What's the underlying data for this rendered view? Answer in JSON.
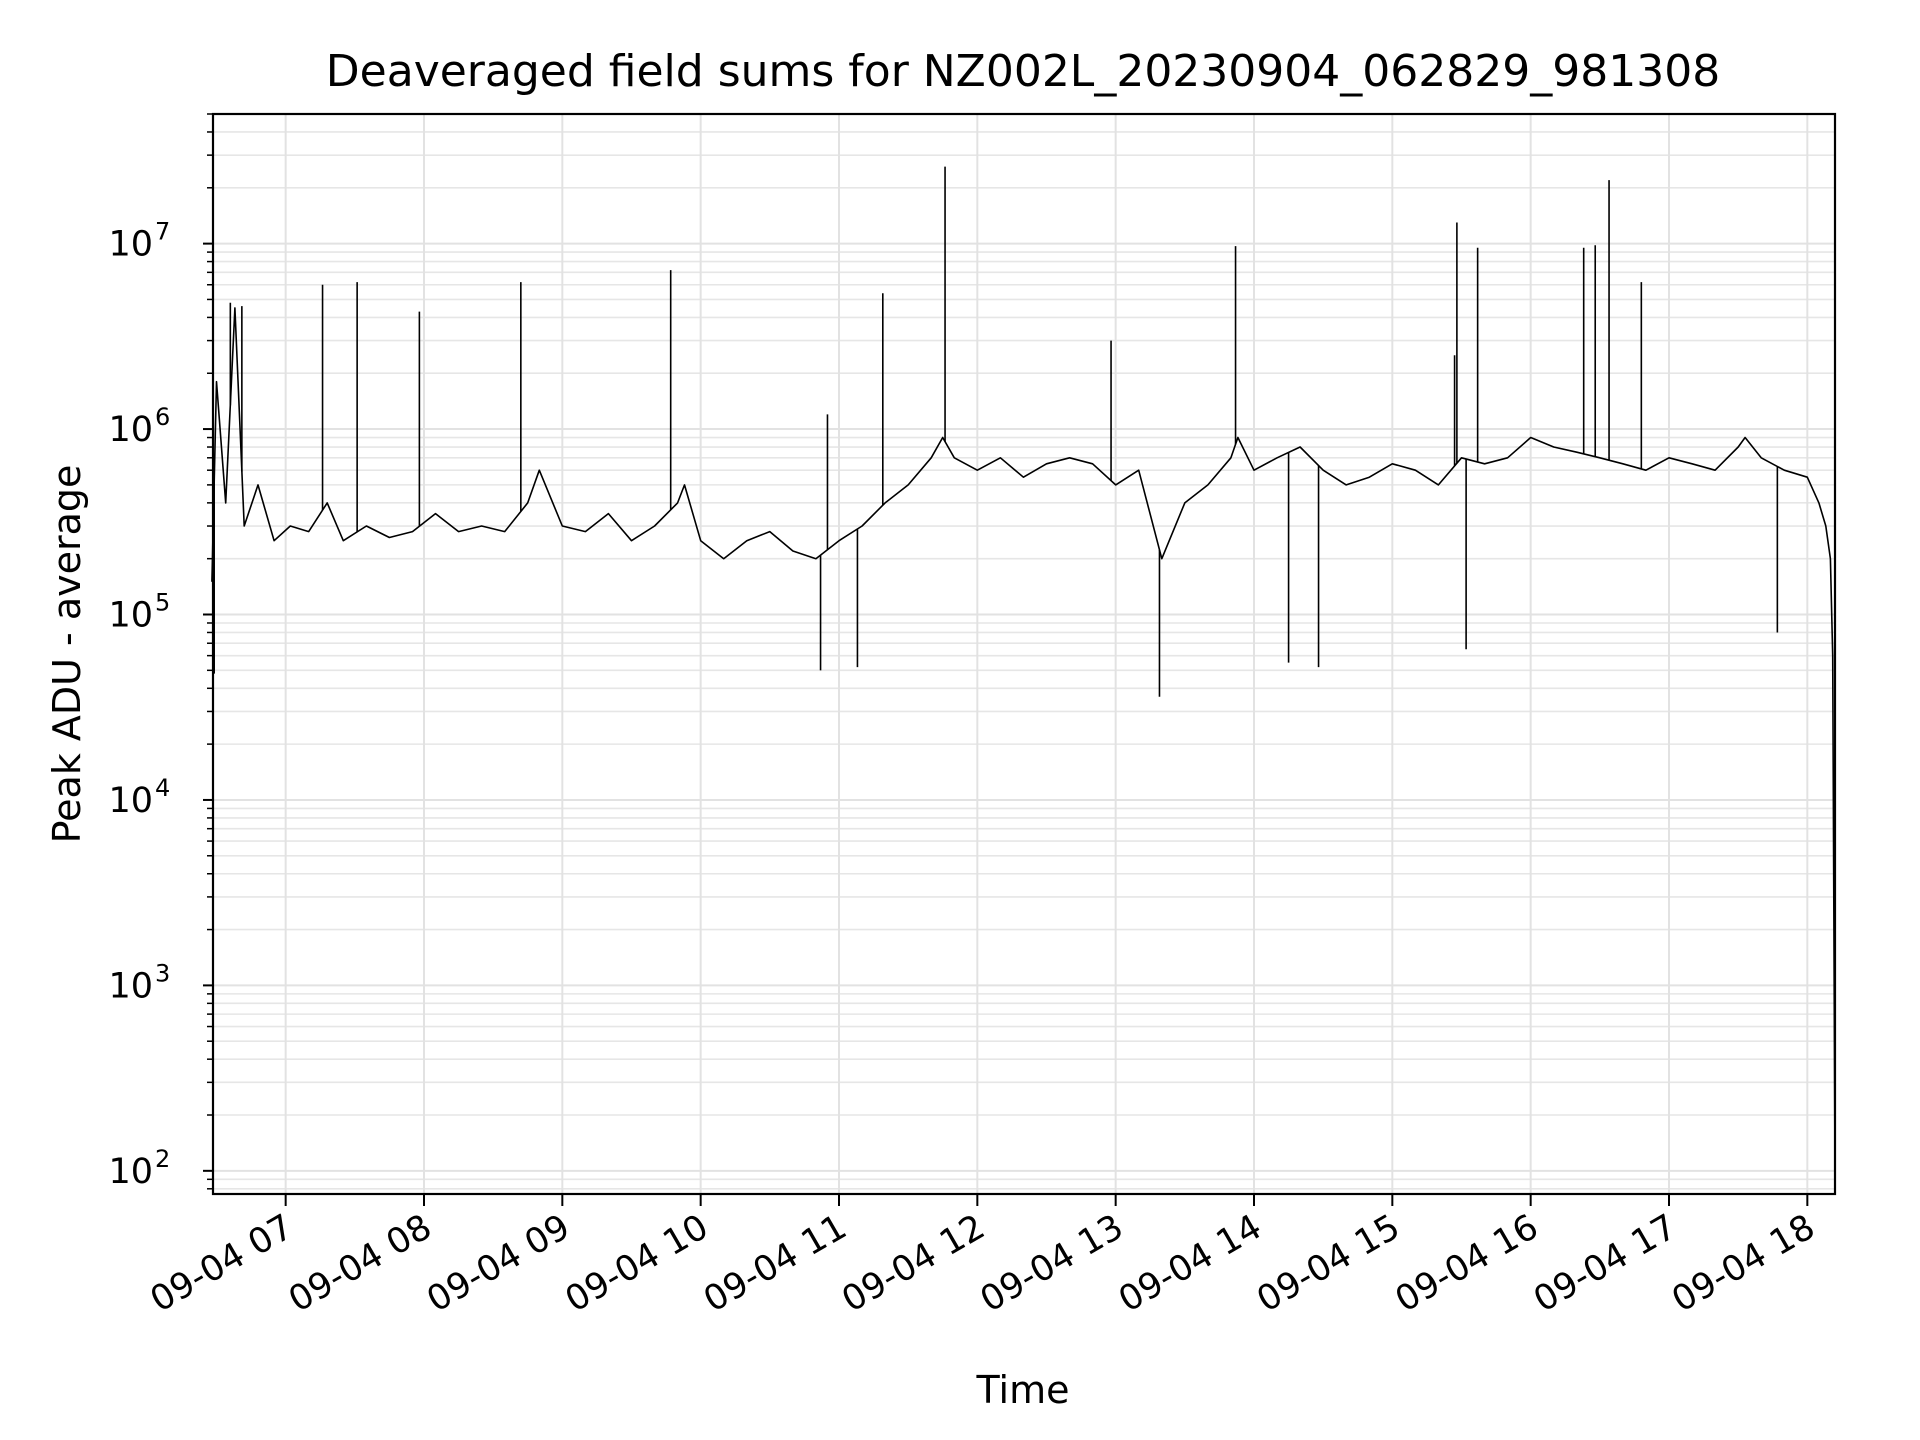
{
  "chart_data": {
    "type": "line",
    "title": "Deaveraged field sums for NZ002L_20230904_062829_981308",
    "xlabel": "Time",
    "ylabel": "Peak ADU - average",
    "yscale": "log",
    "ylim": [
      75,
      50000000
    ],
    "xlim": [
      "09-04 06:28:29",
      "09-04 18:12:00"
    ],
    "grid": "major and minor",
    "x_tick_labels": [
      "09-04 07",
      "09-04 08",
      "09-04 09",
      "09-04 10",
      "09-04 11",
      "09-04 12",
      "09-04 13",
      "09-04 14",
      "09-04 15",
      "09-04 16",
      "09-04 17",
      "09-04 18"
    ],
    "y_ticks": [
      {
        "value": 100,
        "base": "10",
        "exp": "2"
      },
      {
        "value": 1000,
        "base": "10",
        "exp": "3"
      },
      {
        "value": 10000,
        "base": "10",
        "exp": "4"
      },
      {
        "value": 100000,
        "base": "10",
        "exp": "5"
      },
      {
        "value": 1000000,
        "base": "10",
        "exp": "6"
      },
      {
        "value": 10000000,
        "base": "10",
        "exp": "7"
      }
    ],
    "series": [
      {
        "color": "#000000",
        "x": [
          "06:28",
          "06:30",
          "06:34",
          "06:38",
          "06:42",
          "06:48",
          "06:55",
          "07:02",
          "07:10",
          "07:18",
          "07:25",
          "07:35",
          "07:45",
          "07:55",
          "08:05",
          "08:15",
          "08:25",
          "08:35",
          "08:45",
          "08:50",
          "09:00",
          "09:10",
          "09:20",
          "09:30",
          "09:40",
          "09:50",
          "09:53",
          "10:00",
          "10:10",
          "10:20",
          "10:30",
          "10:40",
          "10:50",
          "11:00",
          "11:10",
          "11:20",
          "11:30",
          "11:40",
          "11:45",
          "11:50",
          "12:00",
          "12:10",
          "12:20",
          "12:30",
          "12:40",
          "12:50",
          "13:00",
          "13:10",
          "13:20",
          "13:30",
          "13:40",
          "13:50",
          "13:53",
          "14:00",
          "14:10",
          "14:20",
          "14:30",
          "14:40",
          "14:50",
          "15:00",
          "15:10",
          "15:20",
          "15:30",
          "15:40",
          "15:50",
          "16:00",
          "16:10",
          "16:20",
          "16:30",
          "16:40",
          "16:50",
          "17:00",
          "17:10",
          "17:20",
          "17:30",
          "17:33",
          "17:40",
          "17:50",
          "18:00",
          "18:05",
          "18:08",
          "18:10",
          "18:11",
          "18:12"
        ],
        "y": [
          150000,
          1800000,
          400000,
          4500000,
          300000,
          500000,
          250000,
          300000,
          280000,
          400000,
          250000,
          300000,
          260000,
          280000,
          350000,
          280000,
          300000,
          280000,
          400000,
          600000,
          300000,
          280000,
          350000,
          250000,
          300000,
          400000,
          500000,
          250000,
          200000,
          250000,
          280000,
          220000,
          200000,
          250000,
          300000,
          400000,
          500000,
          700000,
          900000,
          700000,
          600000,
          700000,
          550000,
          650000,
          700000,
          650000,
          500000,
          600000,
          200000,
          400000,
          500000,
          700000,
          900000,
          600000,
          700000,
          800000,
          600000,
          500000,
          550000,
          650000,
          600000,
          500000,
          700000,
          650000,
          700000,
          900000,
          800000,
          750000,
          700000,
          650000,
          600000,
          700000,
          650000,
          600000,
          800000,
          900000,
          700000,
          600000,
          550000,
          400000,
          300000,
          200000,
          60000,
          100
        ]
      }
    ],
    "spikes": [
      {
        "x": "06:36",
        "y": 4800000
      },
      {
        "x": "06:41",
        "y": 4600000
      },
      {
        "x": "07:16",
        "y": 6000000
      },
      {
        "x": "07:31",
        "y": 6200000
      },
      {
        "x": "07:58",
        "y": 4300000
      },
      {
        "x": "08:42",
        "y": 6200000
      },
      {
        "x": "09:47",
        "y": 7200000
      },
      {
        "x": "10:55",
        "y": 1200000
      },
      {
        "x": "11:19",
        "y": 5400000
      },
      {
        "x": "11:46",
        "y": 26000000
      },
      {
        "x": "12:58",
        "y": 3000000
      },
      {
        "x": "13:52",
        "y": 9700000
      },
      {
        "x": "15:27",
        "y": 2500000
      },
      {
        "x": "15:28",
        "y": 13000000
      },
      {
        "x": "15:37",
        "y": 9500000
      },
      {
        "x": "16:23",
        "y": 9500000
      },
      {
        "x": "16:28",
        "y": 9800000
      },
      {
        "x": "16:34",
        "y": 22000000
      },
      {
        "x": "16:48",
        "y": 6200000
      }
    ],
    "dips": [
      {
        "x": "13:19",
        "y": 36000
      },
      {
        "x": "14:15",
        "y": 55000
      },
      {
        "x": "14:28",
        "y": 52000
      },
      {
        "x": "10:52",
        "y": 50000
      },
      {
        "x": "11:08",
        "y": 52000
      },
      {
        "x": "06:29",
        "y": 48000
      },
      {
        "x": "15:32",
        "y": 65000
      },
      {
        "x": "17:47",
        "y": 80000
      }
    ]
  }
}
